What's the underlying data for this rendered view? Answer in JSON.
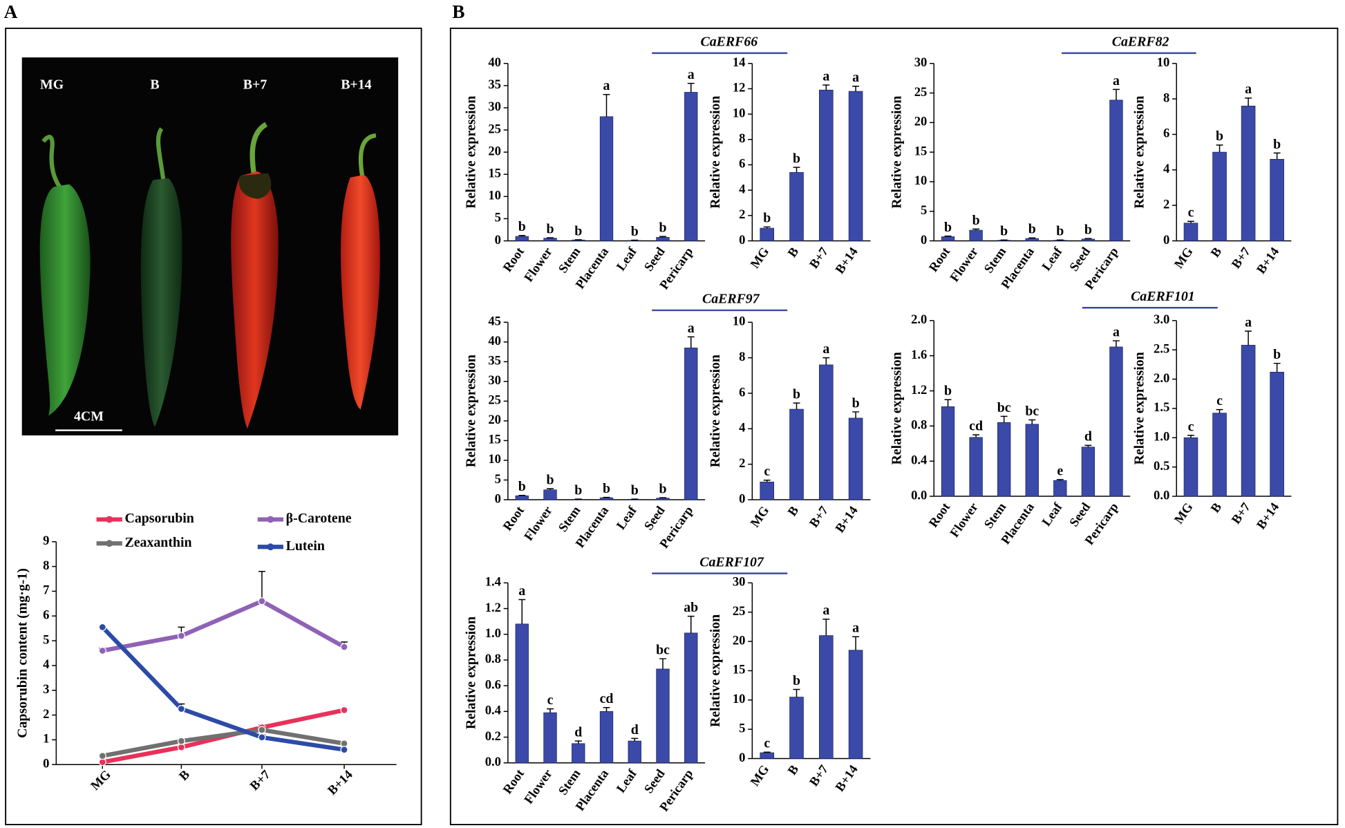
{
  "panel_labels": [
    "A",
    "B"
  ],
  "photo": {
    "labels": [
      "MG",
      "B",
      "B+7",
      "B+14"
    ],
    "scale_bar": "4CM"
  },
  "chart_data": [
    {
      "type": "line",
      "y_label": "Capsorubin content (mg·g-1)",
      "categories": [
        "MG",
        "B",
        "B+7",
        "B+14"
      ],
      "ylim": [
        0,
        9
      ],
      "yticks": [
        0,
        1,
        2,
        3,
        4,
        5,
        6,
        7,
        8,
        9
      ],
      "legend": "top",
      "series": [
        {
          "name": "Capsorubin",
          "color": "#e8315a",
          "values": [
            0.1,
            0.7,
            1.5,
            2.2
          ],
          "errors": [
            0.02,
            0.05,
            0.1,
            0.05
          ]
        },
        {
          "name": "β-Carotene",
          "color": "#8e62b6",
          "values": [
            4.6,
            5.2,
            6.6,
            4.75
          ],
          "errors": [
            0.1,
            0.35,
            1.2,
            0.2
          ]
        },
        {
          "name": "Zeaxanthin",
          "color": "#707070",
          "values": [
            0.35,
            0.95,
            1.4,
            0.85
          ],
          "errors": [
            0.05,
            0.05,
            0.1,
            0.05
          ]
        },
        {
          "name": "Lutein",
          "color": "#2c4aa8",
          "values": [
            5.55,
            2.25,
            1.1,
            0.6
          ],
          "errors": [
            0.05,
            0.2,
            0.1,
            0.05
          ]
        }
      ]
    },
    {
      "type": "bar",
      "y_label": "Relative expression",
      "color": "#3b4aa8",
      "categories": [
        "Root",
        "Flower",
        "Stem",
        "Placenta",
        "Leaf",
        "Seed",
        "Pericarp"
      ],
      "values": [
        1,
        0.6,
        0.2,
        28,
        0.1,
        0.8,
        33.5
      ],
      "errors": [
        0.2,
        0.1,
        0.05,
        5,
        0.05,
        0.2,
        2
      ],
      "letters": [
        "b",
        "b",
        "b",
        "a",
        "b",
        "b",
        "a"
      ],
      "ylim": [
        0,
        40
      ],
      "yticks": [
        0,
        5,
        10,
        15,
        20,
        25,
        30,
        35,
        40
      ]
    },
    {
      "type": "bar",
      "title": "CaERF66",
      "y_label": "Relative expression",
      "color": "#3b4aa8",
      "categories": [
        "MG",
        "B",
        "B+7",
        "B+14"
      ],
      "values": [
        1,
        5.4,
        11.9,
        11.8
      ],
      "errors": [
        0.1,
        0.4,
        0.4,
        0.4
      ],
      "letters": [
        "b",
        "b",
        "a",
        "a"
      ],
      "ylim": [
        0,
        14
      ],
      "yticks": [
        0,
        2,
        4,
        6,
        8,
        10,
        12,
        14
      ]
    },
    {
      "type": "bar",
      "y_label": "Relative expression",
      "color": "#3b4aa8",
      "categories": [
        "Root",
        "Flower",
        "Stem",
        "Placenta",
        "Leaf",
        "Seed",
        "Pericarp"
      ],
      "values": [
        0.7,
        1.8,
        0.1,
        0.4,
        0.1,
        0.3,
        23.8
      ],
      "errors": [
        0.1,
        0.2,
        0.05,
        0.1,
        0.05,
        0.1,
        1.8
      ],
      "letters": [
        "b",
        "b",
        "b",
        "b",
        "b",
        "b",
        "a"
      ],
      "ylim": [
        0,
        30
      ],
      "yticks": [
        0,
        5,
        10,
        15,
        20,
        25,
        30
      ]
    },
    {
      "type": "bar",
      "title": "CaERF82",
      "y_label": "Relative expression",
      "color": "#3b4aa8",
      "categories": [
        "MG",
        "B",
        "B+7",
        "B+14"
      ],
      "values": [
        1,
        5,
        7.6,
        4.6
      ],
      "errors": [
        0.1,
        0.4,
        0.45,
        0.35
      ],
      "letters": [
        "c",
        "b",
        "a",
        "b"
      ],
      "ylim": [
        0,
        10
      ],
      "yticks": [
        0,
        2,
        4,
        6,
        8,
        10
      ]
    },
    {
      "type": "bar",
      "y_label": "Relative expression",
      "color": "#3b4aa8",
      "categories": [
        "Root",
        "Flower",
        "Stem",
        "Placenta",
        "Leaf",
        "Seed",
        "Pericarp"
      ],
      "values": [
        1,
        2.5,
        0.1,
        0.5,
        0.1,
        0.4,
        38.5
      ],
      "errors": [
        0.1,
        0.3,
        0.05,
        0.1,
        0.05,
        0.1,
        2.8
      ],
      "letters": [
        "b",
        "b",
        "b",
        "b",
        "b",
        "b",
        "a"
      ],
      "ylim": [
        0,
        45
      ],
      "yticks": [
        0,
        5,
        10,
        15,
        20,
        25,
        30,
        35,
        40,
        45
      ]
    },
    {
      "type": "bar",
      "title": "CaERF97",
      "y_label": "Relative expression",
      "color": "#3b4aa8",
      "categories": [
        "MG",
        "B",
        "B+7",
        "B+14"
      ],
      "values": [
        1,
        5.1,
        7.6,
        4.6
      ],
      "errors": [
        0.1,
        0.35,
        0.4,
        0.35
      ],
      "letters": [
        "c",
        "b",
        "a",
        "b"
      ],
      "ylim": [
        0,
        10
      ],
      "yticks": [
        0,
        2,
        4,
        6,
        8,
        10
      ]
    },
    {
      "type": "bar",
      "y_label": "Relative expression",
      "color": "#3b4aa8",
      "categories": [
        "Root",
        "Flower",
        "Stem",
        "Placenta",
        "Leaf",
        "Seed",
        "Pericarp"
      ],
      "values": [
        1.02,
        0.67,
        0.84,
        0.82,
        0.18,
        0.56,
        1.7
      ],
      "errors": [
        0.08,
        0.03,
        0.07,
        0.05,
        0.01,
        0.02,
        0.07
      ],
      "letters": [
        "b",
        "cd",
        "bc",
        "bc",
        "e",
        "d",
        "a"
      ],
      "ylim": [
        0,
        2
      ],
      "yticks": [
        {
          "value": 0,
          "label": "0.0"
        },
        0.4,
        0.8,
        1.2,
        1.6,
        {
          "value": 2,
          "label": "2.0"
        }
      ]
    },
    {
      "type": "bar",
      "title": "CaERF101",
      "y_label": "Relative expression",
      "color": "#3b4aa8",
      "categories": [
        "MG",
        "B",
        "B+7",
        "B+14"
      ],
      "values": [
        1,
        1.42,
        2.58,
        2.12
      ],
      "errors": [
        0.04,
        0.06,
        0.24,
        0.15
      ],
      "letters": [
        "c",
        "c",
        "a",
        "b"
      ],
      "ylim": [
        0,
        3
      ],
      "yticks": [
        {
          "value": 0,
          "label": "0.0"
        },
        0.5,
        {
          "value": 1,
          "label": "1.0"
        },
        1.5,
        {
          "value": 2,
          "label": "2.0"
        },
        2.5,
        {
          "value": 3,
          "label": "3.0"
        }
      ]
    },
    {
      "type": "bar",
      "y_label": "Relative expression",
      "color": "#3b4aa8",
      "categories": [
        "Root",
        "Flower",
        "Stem",
        "Placenta",
        "Leaf",
        "Seed",
        "Pericarp"
      ],
      "values": [
        1.08,
        0.39,
        0.15,
        0.4,
        0.17,
        0.73,
        1.01
      ],
      "errors": [
        0.19,
        0.03,
        0.02,
        0.03,
        0.02,
        0.08,
        0.13
      ],
      "letters": [
        "a",
        "c",
        "d",
        "cd",
        "d",
        "bc",
        "ab"
      ],
      "ylim": [
        0,
        1.4
      ],
      "yticks": [
        {
          "value": 0,
          "label": "0.0"
        },
        0.2,
        0.4,
        0.6,
        0.8,
        {
          "value": 1,
          "label": "1.0"
        },
        1.2,
        1.4
      ]
    },
    {
      "type": "bar",
      "title": "CaERF107",
      "y_label": "Relative expression",
      "color": "#3b4aa8",
      "categories": [
        "MG",
        "B",
        "B+7",
        "B+14"
      ],
      "values": [
        1,
        10.5,
        21,
        18.5
      ],
      "errors": [
        0.1,
        1.3,
        2.8,
        2.3
      ],
      "letters": [
        "c",
        "b",
        "a",
        "a"
      ],
      "ylim": [
        0,
        30
      ],
      "yticks": [
        0,
        5,
        10,
        15,
        20,
        25,
        30
      ]
    }
  ]
}
